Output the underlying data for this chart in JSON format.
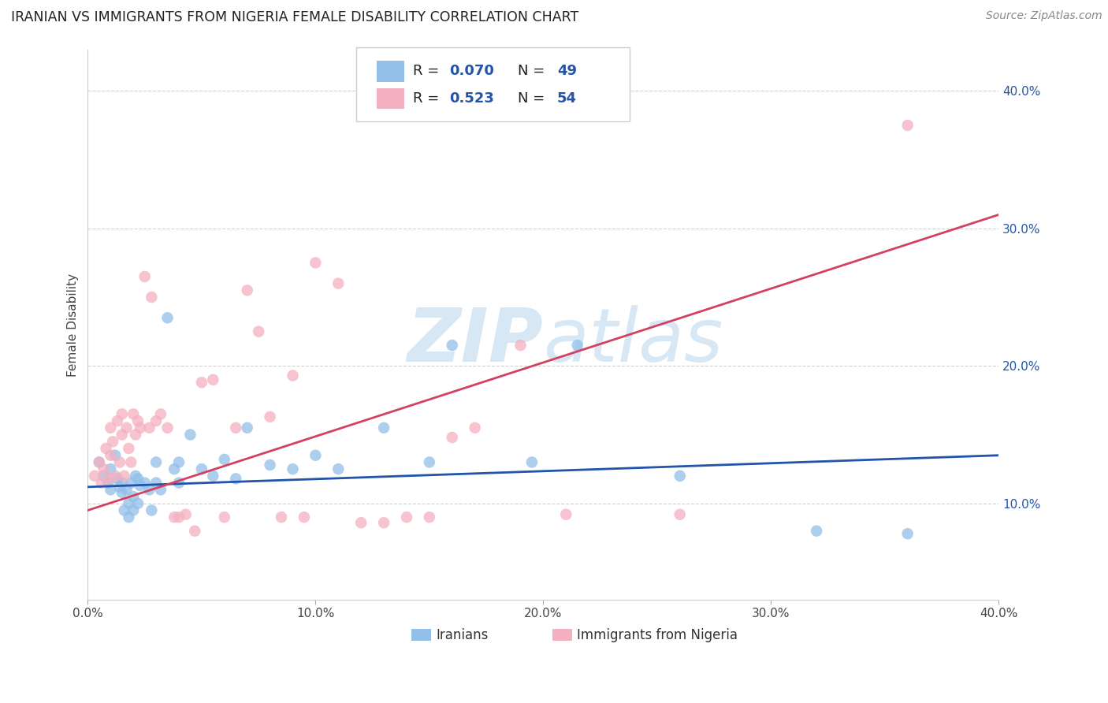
{
  "title": "IRANIAN VS IMMIGRANTS FROM NIGERIA FEMALE DISABILITY CORRELATION CHART",
  "source": "Source: ZipAtlas.com",
  "ylabel": "Female Disability",
  "yticks": [
    0.1,
    0.2,
    0.3,
    0.4
  ],
  "ytick_labels": [
    "10.0%",
    "20.0%",
    "30.0%",
    "40.0%"
  ],
  "xticks": [
    0.0,
    0.1,
    0.2,
    0.3,
    0.4
  ],
  "xtick_labels": [
    "0.0%",
    "10.0%",
    "20.0%",
    "30.0%",
    "40.0%"
  ],
  "xlim": [
    0.0,
    0.4
  ],
  "ylim": [
    0.03,
    0.43
  ],
  "blue_R": 0.07,
  "blue_N": 49,
  "pink_R": 0.523,
  "pink_N": 54,
  "blue_color": "#92c0e8",
  "pink_color": "#f4afc0",
  "blue_line_color": "#2255aa",
  "pink_line_color": "#d44060",
  "watermark_color": "#c8ddf0",
  "legend_label_blue": "Iranians",
  "legend_label_pink": "Immigrants from Nigeria",
  "blue_scatter_x": [
    0.005,
    0.007,
    0.009,
    0.01,
    0.01,
    0.012,
    0.013,
    0.014,
    0.015,
    0.015,
    0.016,
    0.017,
    0.018,
    0.018,
    0.019,
    0.02,
    0.02,
    0.021,
    0.022,
    0.022,
    0.023,
    0.025,
    0.027,
    0.028,
    0.03,
    0.03,
    0.032,
    0.035,
    0.038,
    0.04,
    0.04,
    0.045,
    0.05,
    0.055,
    0.06,
    0.065,
    0.07,
    0.08,
    0.09,
    0.1,
    0.11,
    0.13,
    0.15,
    0.16,
    0.195,
    0.215,
    0.26,
    0.32,
    0.36
  ],
  "blue_scatter_y": [
    0.13,
    0.12,
    0.115,
    0.125,
    0.11,
    0.135,
    0.118,
    0.112,
    0.115,
    0.108,
    0.095,
    0.11,
    0.1,
    0.09,
    0.115,
    0.105,
    0.095,
    0.12,
    0.118,
    0.1,
    0.113,
    0.115,
    0.11,
    0.095,
    0.13,
    0.115,
    0.11,
    0.235,
    0.125,
    0.13,
    0.115,
    0.15,
    0.125,
    0.12,
    0.132,
    0.118,
    0.155,
    0.128,
    0.125,
    0.135,
    0.125,
    0.155,
    0.13,
    0.215,
    0.13,
    0.215,
    0.12,
    0.08,
    0.078
  ],
  "pink_scatter_x": [
    0.003,
    0.005,
    0.006,
    0.007,
    0.008,
    0.009,
    0.01,
    0.01,
    0.011,
    0.012,
    0.013,
    0.014,
    0.015,
    0.015,
    0.016,
    0.017,
    0.018,
    0.019,
    0.02,
    0.021,
    0.022,
    0.023,
    0.025,
    0.027,
    0.028,
    0.03,
    0.032,
    0.035,
    0.038,
    0.04,
    0.043,
    0.047,
    0.05,
    0.055,
    0.06,
    0.065,
    0.07,
    0.075,
    0.08,
    0.085,
    0.09,
    0.095,
    0.1,
    0.11,
    0.12,
    0.13,
    0.14,
    0.15,
    0.16,
    0.17,
    0.19,
    0.21,
    0.26,
    0.36
  ],
  "pink_scatter_y": [
    0.12,
    0.13,
    0.115,
    0.125,
    0.14,
    0.118,
    0.155,
    0.135,
    0.145,
    0.12,
    0.16,
    0.13,
    0.15,
    0.165,
    0.12,
    0.155,
    0.14,
    0.13,
    0.165,
    0.15,
    0.16,
    0.155,
    0.265,
    0.155,
    0.25,
    0.16,
    0.165,
    0.155,
    0.09,
    0.09,
    0.092,
    0.08,
    0.188,
    0.19,
    0.09,
    0.155,
    0.255,
    0.225,
    0.163,
    0.09,
    0.193,
    0.09,
    0.275,
    0.26,
    0.086,
    0.086,
    0.09,
    0.09,
    0.148,
    0.155,
    0.215,
    0.092,
    0.092,
    0.375
  ]
}
